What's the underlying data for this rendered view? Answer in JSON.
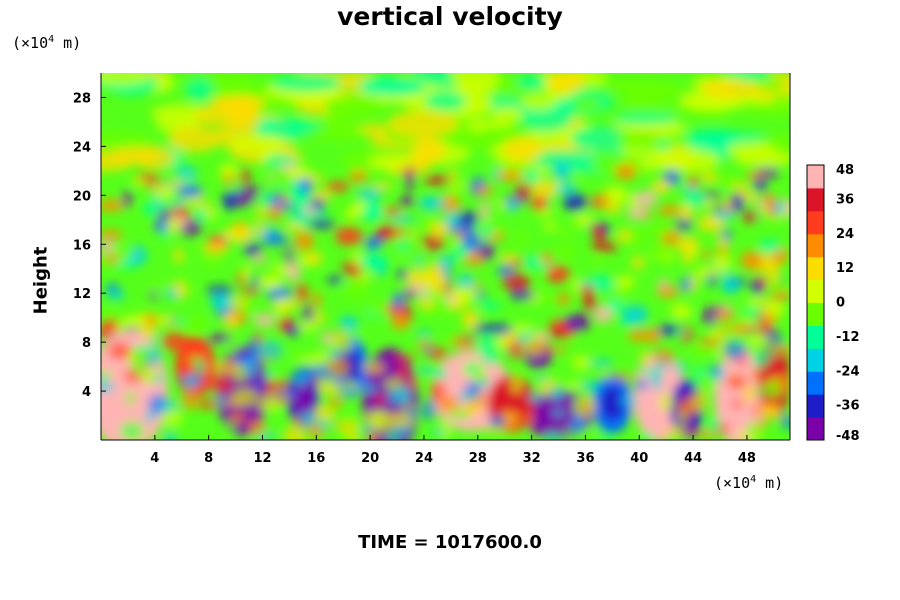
{
  "chart_data": {
    "type": "heatmap",
    "title": "vertical velocity",
    "ylabel": "Height",
    "x_unit": {
      "prefix": "(×10",
      "exp": "4",
      "suffix": " m)"
    },
    "y_unit": {
      "prefix": "(×10",
      "exp": "4",
      "suffix": " m)"
    },
    "xlim": [
      0,
      51.2
    ],
    "ylim": [
      0,
      30
    ],
    "x_ticks": [
      4,
      8,
      12,
      16,
      20,
      24,
      28,
      32,
      36,
      40,
      44,
      48
    ],
    "y_ticks": [
      4,
      8,
      12,
      16,
      20,
      24,
      28
    ],
    "colorbar": {
      "min": -48,
      "max": 48,
      "ticks": [
        48,
        36,
        24,
        12,
        0,
        -12,
        -24,
        -36,
        -48
      ],
      "colors": [
        "#7a00a8",
        "#1e1ec8",
        "#0070ff",
        "#00d2e6",
        "#00ff96",
        "#6aff00",
        "#d2ff00",
        "#ffdc00",
        "#ff8c00",
        "#ff3c1e",
        "#dc1428",
        "#ffb4b4"
      ]
    },
    "time_label": "TIME = 1017600.0"
  }
}
